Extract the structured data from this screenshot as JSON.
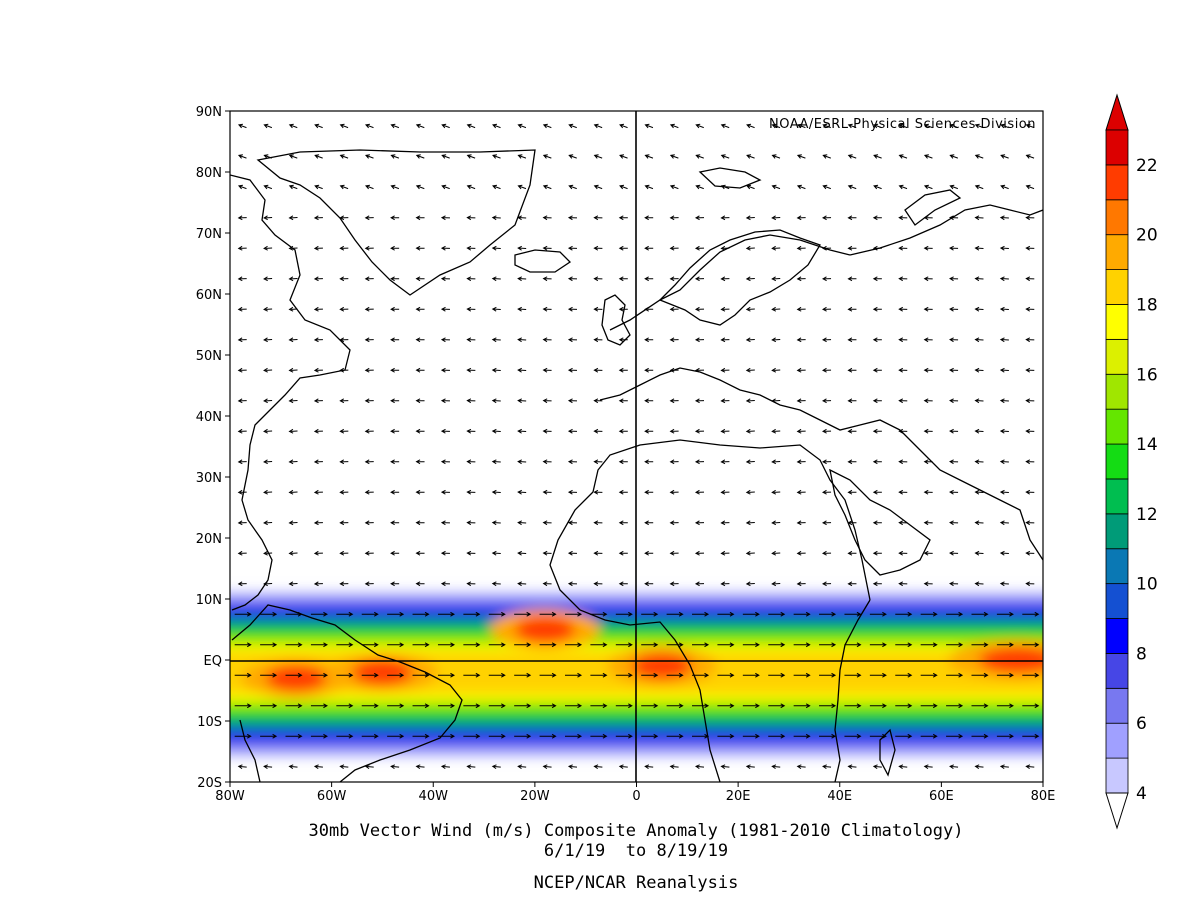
{
  "credit": "NOAA/ESRL Physical Sciences Division",
  "caption": {
    "line1": "30mb Vector Wind (m/s) Composite Anomaly (1981-2010 Climatology)",
    "line2": "6/1/19  to 8/19/19",
    "line3": "NCEP/NCAR Reanalysis"
  },
  "chart_data": {
    "type": "heatmap",
    "x_ticks": [
      "80W",
      "60W",
      "40W",
      "20W",
      "0",
      "20E",
      "40E",
      "60E",
      "80E"
    ],
    "y_ticks": [
      "90N",
      "80N",
      "70N",
      "60N",
      "50N",
      "40N",
      "30N",
      "20N",
      "10N",
      "EQ",
      "10S",
      "20S"
    ],
    "xlim_deg": [
      -80,
      80
    ],
    "ylim_deg": [
      -20,
      90
    ],
    "colorbar": {
      "labels": [
        "4",
        "6",
        "8",
        "10",
        "12",
        "14",
        "16",
        "18",
        "20",
        "22"
      ],
      "levels": [
        4,
        5,
        6,
        7,
        8,
        9,
        10,
        11,
        12,
        13,
        14,
        15,
        16,
        17,
        18,
        19,
        20,
        21,
        22
      ],
      "colors": [
        "#c8c8ff",
        "#a0a0ff",
        "#7878f0",
        "#4646e6",
        "#0000ff",
        "#1450d2",
        "#0a78b4",
        "#009b78",
        "#00be50",
        "#14dc14",
        "#64e600",
        "#a0e600",
        "#dcf000",
        "#ffff00",
        "#ffd200",
        "#ffaa00",
        "#ff7800",
        "#ff3c00",
        "#dc0000"
      ]
    },
    "wind_band": {
      "description_units": "m/s",
      "core_lat_deg": -2,
      "max_value": 21,
      "hotspots_lon_lat": [
        [
          -67,
          -3
        ],
        [
          -50,
          -2
        ],
        [
          5,
          -1
        ],
        [
          75,
          0
        ],
        [
          -18,
          5
        ]
      ]
    }
  }
}
